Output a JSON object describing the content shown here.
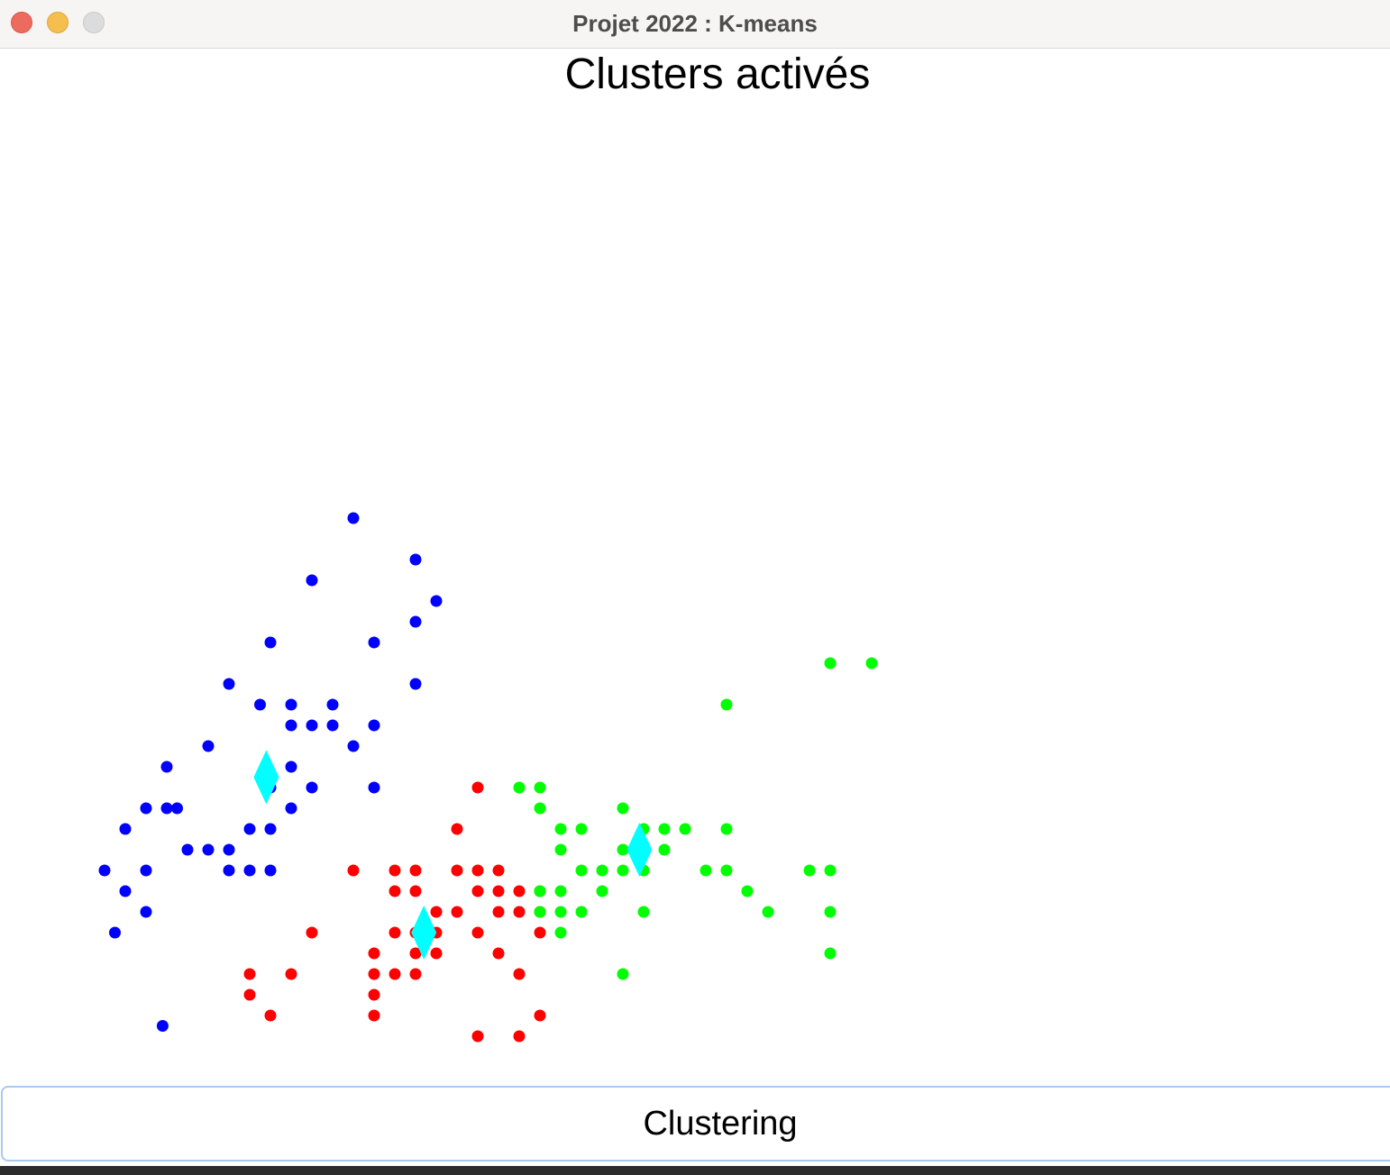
{
  "window": {
    "title": "Projet 2022 : K-means"
  },
  "chart_data": {
    "type": "scatter",
    "title": "Clusters activés",
    "xlim": [
      0,
      70
    ],
    "ylim": [
      0,
      50
    ],
    "series": [
      {
        "color": "#0000ff",
        "marker": "dot",
        "points": [
          [
            14,
            25
          ],
          [
            12,
            22
          ],
          [
            10,
            19
          ],
          [
            9.5,
            16
          ],
          [
            11,
            16
          ],
          [
            8,
            17
          ],
          [
            7,
            14
          ],
          [
            5,
            13
          ],
          [
            5.5,
            11
          ],
          [
            3,
            10
          ],
          [
            3,
            7
          ],
          [
            6,
            9
          ],
          [
            7,
            9
          ],
          [
            5,
            11
          ],
          [
            9,
            8
          ],
          [
            10,
            8
          ],
          [
            10,
            10
          ],
          [
            10,
            12
          ],
          [
            11,
            11
          ],
          [
            11,
            13
          ],
          [
            12,
            12
          ],
          [
            11,
            15
          ],
          [
            12,
            15
          ],
          [
            13,
            16
          ],
          [
            13,
            15
          ],
          [
            14,
            14
          ],
          [
            15,
            12
          ],
          [
            15,
            15
          ],
          [
            17,
            17
          ],
          [
            17,
            23
          ],
          [
            18,
            21
          ],
          [
            17,
            20
          ],
          [
            15,
            19
          ],
          [
            8,
            9
          ],
          [
            9,
            10
          ],
          [
            2,
            8
          ],
          [
            4,
            8
          ],
          [
            8,
            8
          ],
          [
            4,
            6
          ],
          [
            4,
            11
          ],
          [
            2.5,
            5
          ],
          [
            4.8,
            0.5
          ]
        ]
      },
      {
        "color": "#ff0000",
        "marker": "dot",
        "points": [
          [
            20,
            12
          ],
          [
            19,
            10
          ],
          [
            14,
            8
          ],
          [
            16,
            8
          ],
          [
            17,
            8
          ],
          [
            19,
            8
          ],
          [
            20,
            8
          ],
          [
            21,
            8
          ],
          [
            16,
            7
          ],
          [
            17,
            7
          ],
          [
            18,
            6
          ],
          [
            19,
            6
          ],
          [
            20,
            7
          ],
          [
            21,
            7
          ],
          [
            22,
            7
          ],
          [
            23,
            7
          ],
          [
            21,
            6
          ],
          [
            22,
            6
          ],
          [
            23,
            6
          ],
          [
            23,
            5
          ],
          [
            20,
            5
          ],
          [
            17,
            5
          ],
          [
            18,
            5
          ],
          [
            16,
            5
          ],
          [
            12,
            5
          ],
          [
            17,
            4
          ],
          [
            18,
            4
          ],
          [
            15,
            4
          ],
          [
            21,
            4
          ],
          [
            22,
            3
          ],
          [
            16,
            3
          ],
          [
            17,
            3
          ],
          [
            15,
            3
          ],
          [
            11,
            3
          ],
          [
            9,
            3
          ],
          [
            9,
            2
          ],
          [
            15,
            2
          ],
          [
            10,
            1
          ],
          [
            15,
            1
          ],
          [
            23,
            1
          ],
          [
            20,
            0
          ],
          [
            22,
            0
          ]
        ]
      },
      {
        "color": "#00ff00",
        "marker": "dot",
        "points": [
          [
            37,
            18
          ],
          [
            39,
            18
          ],
          [
            32,
            16
          ],
          [
            22,
            12
          ],
          [
            23,
            12
          ],
          [
            23,
            11
          ],
          [
            27,
            11
          ],
          [
            24,
            10
          ],
          [
            25,
            10
          ],
          [
            28,
            10
          ],
          [
            29,
            10
          ],
          [
            30,
            10
          ],
          [
            32,
            10
          ],
          [
            24,
            9
          ],
          [
            27,
            9
          ],
          [
            29,
            9
          ],
          [
            25,
            8
          ],
          [
            26,
            8
          ],
          [
            27,
            8
          ],
          [
            28,
            8
          ],
          [
            31,
            8
          ],
          [
            32,
            8
          ],
          [
            36,
            8
          ],
          [
            37,
            8
          ],
          [
            23,
            7
          ],
          [
            24,
            7
          ],
          [
            26,
            7
          ],
          [
            33,
            7
          ],
          [
            23,
            6
          ],
          [
            24,
            6
          ],
          [
            25,
            6
          ],
          [
            28,
            6
          ],
          [
            34,
            6
          ],
          [
            37,
            6
          ],
          [
            24,
            5
          ],
          [
            37,
            4
          ],
          [
            27,
            3
          ]
        ]
      },
      {
        "color": "#00ffff",
        "marker": "diamond",
        "points": [
          [
            9.8,
            12.5
          ],
          [
            27.8,
            9
          ],
          [
            17.4,
            5
          ]
        ]
      }
    ]
  },
  "footer": {
    "button_label": "Clustering"
  }
}
